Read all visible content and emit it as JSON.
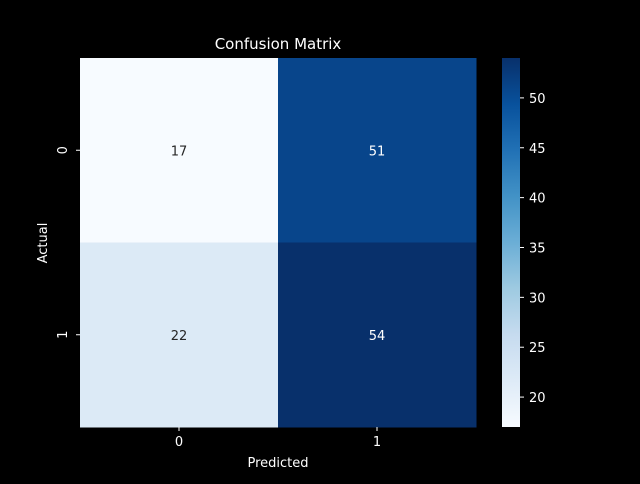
{
  "chart_data": {
    "type": "heatmap",
    "title": "Confusion Matrix",
    "xlabel": "Predicted",
    "ylabel": "Actual",
    "x_categories": [
      "0",
      "1"
    ],
    "y_categories": [
      "0",
      "1"
    ],
    "values": [
      [
        17,
        51
      ],
      [
        22,
        54
      ]
    ],
    "annotations_shown": true,
    "colormap": "Blues",
    "colorbar": {
      "range": [
        17,
        54
      ],
      "ticks": [
        20,
        25,
        30,
        35,
        40,
        45,
        50
      ],
      "position": "right"
    },
    "grid": false,
    "background_color": "#000000",
    "text_color": "#ffffff"
  }
}
